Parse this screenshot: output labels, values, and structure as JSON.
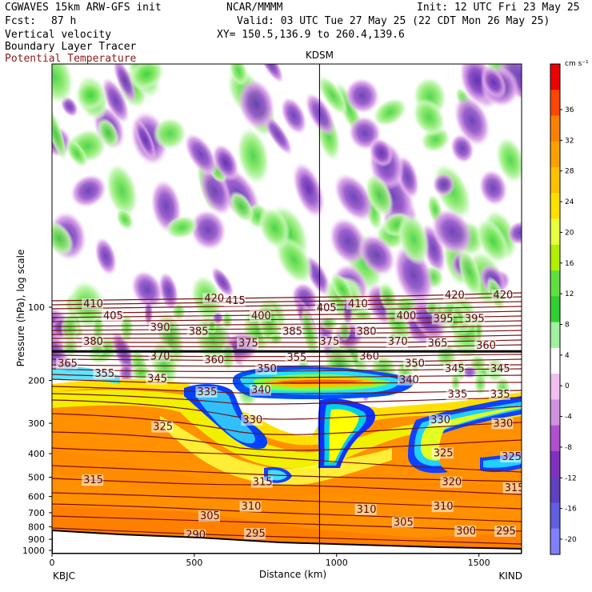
{
  "header": {
    "model": "CGWAVES 15km ARW-GFS init",
    "org": "NCAR/MMMM",
    "init": "Init: 12 UTC Fri 23 May 25",
    "fcst_label": "Fcst:",
    "fcst_value": "87 h",
    "valid": "Valid: 03 UTC Tue 27 May 25 (22 CDT Mon 26 May 25)",
    "field1": "Vertical velocity",
    "field2": "Boundary Layer Tracer",
    "field3": "Potential Temperature",
    "xy": "XY= 150.5,136.9 to 260.4,139.6"
  },
  "chart_data": {
    "type": "heatmap",
    "title": "KDSM",
    "xlabel": "Distance (km)",
    "ylabel": "Pressure (hPa), log scale",
    "x_range": [
      0,
      1650
    ],
    "x_ticks": [
      "0",
      "500",
      "1000",
      "1500"
    ],
    "x_tick_values": [
      0,
      500,
      1000,
      1500
    ],
    "x_ends": {
      "left": "KBJC",
      "right": "KIND"
    },
    "marker_km": 940,
    "y_ticks": [
      "100",
      "200",
      "300",
      "400",
      "500",
      "600",
      "700",
      "800",
      "900",
      "1000"
    ],
    "y_tick_values": [
      100,
      200,
      300,
      400,
      500,
      600,
      700,
      800,
      900,
      1000
    ],
    "tropopause_hpa": 152,
    "colorbar": {
      "units": "cm s⁻¹",
      "labels": [
        "36",
        "32",
        "28",
        "24",
        "20",
        "16",
        "12",
        "8",
        "4",
        "0",
        "-4",
        "-8",
        "-12",
        "-16",
        "-20"
      ],
      "colors": [
        "#ee0000",
        "#ff4500",
        "#ff8000",
        "#ffa000",
        "#ffc000",
        "#ffe000",
        "#e8ff40",
        "#b0f000",
        "#60e040",
        "#30d030",
        "#a0f0a0",
        "#ffffff",
        "#f0c0f0",
        "#d090e0",
        "#b050d0",
        "#8030c0",
        "#6040c0",
        "#6060e0",
        "#8080ff"
      ]
    },
    "theta_labels": [
      {
        "text": "420",
        "km": 535,
        "hpa": 95
      },
      {
        "text": "415",
        "km": 610,
        "hpa": 97
      },
      {
        "text": "410",
        "km": 110,
        "hpa": 100
      },
      {
        "text": "405",
        "km": 930,
        "hpa": 104
      },
      {
        "text": "410",
        "km": 1040,
        "hpa": 100
      },
      {
        "text": "420",
        "km": 1380,
        "hpa": 92
      },
      {
        "text": "420",
        "km": 1550,
        "hpa": 92
      },
      {
        "text": "405",
        "km": 180,
        "hpa": 112
      },
      {
        "text": "400",
        "km": 700,
        "hpa": 112
      },
      {
        "text": "400",
        "km": 1210,
        "hpa": 112
      },
      {
        "text": "395",
        "km": 1340,
        "hpa": 115
      },
      {
        "text": "395",
        "km": 1450,
        "hpa": 115
      },
      {
        "text": "390",
        "km": 345,
        "hpa": 125
      },
      {
        "text": "385",
        "km": 480,
        "hpa": 130
      },
      {
        "text": "385",
        "km": 810,
        "hpa": 130
      },
      {
        "text": "380",
        "km": 1070,
        "hpa": 130
      },
      {
        "text": "380",
        "km": 110,
        "hpa": 143
      },
      {
        "text": "375",
        "km": 655,
        "hpa": 145
      },
      {
        "text": "375",
        "km": 940,
        "hpa": 143
      },
      {
        "text": "370",
        "km": 1180,
        "hpa": 143
      },
      {
        "text": "365",
        "km": 1320,
        "hpa": 145
      },
      {
        "text": "360",
        "km": 1490,
        "hpa": 148
      },
      {
        "text": "370",
        "km": 345,
        "hpa": 164
      },
      {
        "text": "360",
        "km": 535,
        "hpa": 170
      },
      {
        "text": "355",
        "km": 825,
        "hpa": 166
      },
      {
        "text": "360",
        "km": 1080,
        "hpa": 164
      },
      {
        "text": "365",
        "km": 20,
        "hpa": 176
      },
      {
        "text": "350",
        "km": 1240,
        "hpa": 176
      },
      {
        "text": "345",
        "km": 1380,
        "hpa": 185
      },
      {
        "text": "345",
        "km": 1540,
        "hpa": 185
      },
      {
        "text": "355",
        "km": 150,
        "hpa": 193
      },
      {
        "text": "350",
        "km": 720,
        "hpa": 185
      },
      {
        "text": "345",
        "km": 335,
        "hpa": 203
      },
      {
        "text": "340",
        "km": 1220,
        "hpa": 205
      },
      {
        "text": "335",
        "km": 510,
        "hpa": 230
      },
      {
        "text": "340",
        "km": 700,
        "hpa": 226
      },
      {
        "text": "335",
        "km": 1390,
        "hpa": 235
      },
      {
        "text": "335",
        "km": 1540,
        "hpa": 235
      },
      {
        "text": "330",
        "km": 670,
        "hpa": 300
      },
      {
        "text": "325",
        "km": 355,
        "hpa": 320
      },
      {
        "text": "330",
        "km": 1330,
        "hpa": 300
      },
      {
        "text": "330",
        "km": 1550,
        "hpa": 310
      },
      {
        "text": "325",
        "km": 1340,
        "hpa": 410
      },
      {
        "text": "325",
        "km": 1580,
        "hpa": 425
      },
      {
        "text": "315",
        "km": 110,
        "hpa": 530
      },
      {
        "text": "315",
        "km": 705,
        "hpa": 540
      },
      {
        "text": "320",
        "km": 1370,
        "hpa": 540
      },
      {
        "text": "315",
        "km": 1590,
        "hpa": 570
      },
      {
        "text": "310",
        "km": 665,
        "hpa": 680
      },
      {
        "text": "310",
        "km": 1070,
        "hpa": 700
      },
      {
        "text": "310",
        "km": 1340,
        "hpa": 680
      },
      {
        "text": "305",
        "km": 520,
        "hpa": 745
      },
      {
        "text": "305",
        "km": 1200,
        "hpa": 790
      },
      {
        "text": "300",
        "km": 1420,
        "hpa": 860
      },
      {
        "text": "295",
        "km": 680,
        "hpa": 880
      },
      {
        "text": "295",
        "km": 1560,
        "hpa": 860
      },
      {
        "text": "290",
        "km": 470,
        "hpa": 890
      }
    ]
  }
}
